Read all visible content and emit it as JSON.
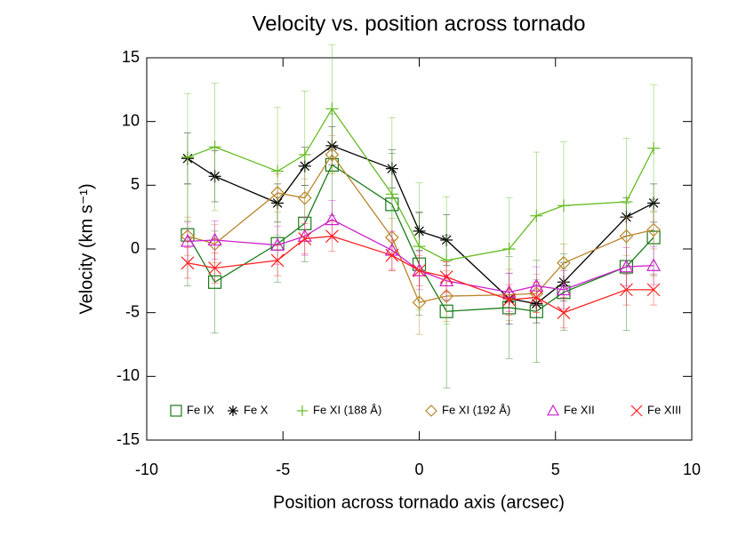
{
  "chart_data": {
    "type": "line",
    "title": "Velocity vs. position across tornado",
    "xlabel": "Position across tornado axis (arcsec)",
    "ylabel": "Velocity (km s⁻¹)",
    "x": [
      -8.5,
      -7.5,
      -5.2,
      -4.2,
      -3.2,
      -1.0,
      0.0,
      1.0,
      3.3,
      4.3,
      5.3,
      7.6,
      8.6
    ],
    "xlim": [
      -10,
      10
    ],
    "xticks": [
      -10,
      -5,
      0,
      5,
      10
    ],
    "ylim": [
      -15,
      15
    ],
    "yticks": [
      -15,
      -10,
      -5,
      0,
      5,
      10,
      15
    ],
    "series": [
      {
        "name": "Fe IX",
        "color": "#1a7a1a",
        "marker": "square",
        "values": [
          1.1,
          -2.6,
          0.4,
          2.0,
          6.6,
          3.5,
          -1.2,
          -4.9,
          -4.6,
          -4.9,
          -3.4,
          -1.4,
          0.9
        ],
        "errors": [
          4,
          4,
          3,
          3,
          4,
          4,
          4,
          6,
          4,
          4,
          3,
          5,
          3
        ]
      },
      {
        "name": "Fe X",
        "color": "#000000",
        "marker": "asterisk",
        "values": [
          7.1,
          5.7,
          3.6,
          6.5,
          8.1,
          6.3,
          1.4,
          0.7,
          -3.9,
          -4.3,
          -2.6,
          2.5,
          3.6
        ],
        "errors": [
          2,
          2,
          1.5,
          1.5,
          1.5,
          1.5,
          1.5,
          2,
          2,
          1.5,
          1.5,
          1.5,
          1.5
        ]
      },
      {
        "name": "Fe XI (188 Å)",
        "color": "#66bb22",
        "marker": "plus",
        "values": [
          7.2,
          8.0,
          6.1,
          7.4,
          11.0,
          4.3,
          0.2,
          -0.9,
          0.0,
          2.6,
          3.4,
          3.7,
          7.9
        ],
        "errors": [
          5,
          5,
          5,
          5,
          5,
          6,
          5,
          5,
          4,
          5,
          5,
          5,
          5
        ]
      },
      {
        "name": "Fe XI (192 Å)",
        "color": "#b8862b",
        "marker": "diamond",
        "values": [
          1.0,
          0.4,
          4.4,
          4.0,
          7.4,
          0.9,
          -4.2,
          -3.7,
          -3.6,
          -3.5,
          -1.1,
          1.0,
          1.5
        ],
        "errors": [
          1.5,
          1.5,
          1.5,
          1.5,
          1.5,
          1.5,
          2.5,
          2,
          2,
          1.5,
          1.5,
          1.5,
          1.5
        ]
      },
      {
        "name": "Fe XII",
        "color": "#cc22cc",
        "marker": "triangle",
        "values": [
          0.6,
          0.7,
          0.3,
          1.0,
          2.3,
          -0.1,
          -1.7,
          -2.5,
          -3.4,
          -2.9,
          -3.2,
          -1.4,
          -1.3
        ],
        "errors": [
          1.5,
          1.5,
          1.5,
          1.5,
          1.5,
          1.5,
          1.5,
          1.5,
          1.5,
          1.5,
          1.5,
          1.5,
          1.5
        ]
      },
      {
        "name": "Fe XIII",
        "color": "#ff2020",
        "marker": "x",
        "values": [
          -1.1,
          -1.5,
          -0.9,
          0.8,
          1.0,
          -0.5,
          -1.7,
          -2.2,
          -4.0,
          -3.8,
          -5.0,
          -3.2,
          -3.2
        ],
        "errors": [
          1.2,
          1.2,
          1.2,
          1.2,
          1.2,
          1.2,
          1.2,
          1.2,
          1.2,
          1.2,
          1.2,
          1.2,
          1.2
        ]
      }
    ]
  }
}
